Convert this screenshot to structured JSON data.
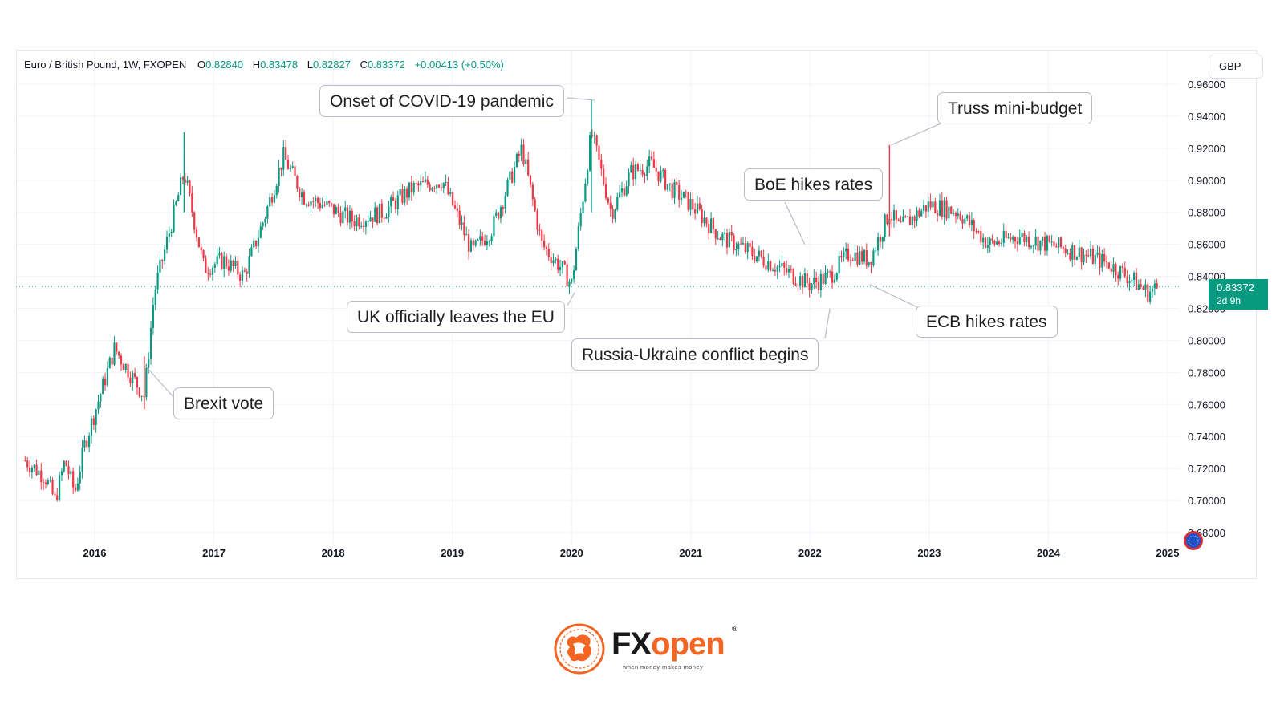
{
  "legend": {
    "symbol": "Euro / British Pound, 1W, FXOPEN",
    "o_label": "O",
    "o_value": "0.82840",
    "h_label": "H",
    "h_value": "0.83478",
    "l_label": "L",
    "l_value": "0.82827",
    "c_label": "C",
    "c_value": "0.83372",
    "change": "+0.00413 (+0.50%)"
  },
  "currency": "GBP",
  "price_tag": {
    "value": "0.83372",
    "countdown": "2d 9h"
  },
  "colors": {
    "up": "#089981",
    "down": "#f23645",
    "grid": "#f0f3fa",
    "axis_text": "#131722"
  },
  "chart_data": {
    "type": "candlestick",
    "title": "Euro / British Pound, 1W, FXOPEN",
    "xlabel": "",
    "ylabel": "",
    "ylim": [
      0.665,
      0.965
    ],
    "x_ticks": [
      "2016",
      "2017",
      "2018",
      "2019",
      "2020",
      "2021",
      "2022",
      "2023",
      "2024",
      "2025"
    ],
    "y_ticks": [
      "0.96000",
      "0.94000",
      "0.92000",
      "0.90000",
      "0.88000",
      "0.86000",
      "0.84000",
      "0.82000",
      "0.80000",
      "0.78000",
      "0.76000",
      "0.74000",
      "0.72000",
      "0.70000",
      "0.68000"
    ],
    "y_tick_values": [
      0.96,
      0.94,
      0.92,
      0.9,
      0.88,
      0.86,
      0.84,
      0.82,
      0.8,
      0.78,
      0.76,
      0.74,
      0.72,
      0.7,
      0.68
    ],
    "current_price": 0.83372,
    "grid": true,
    "series": [
      {
        "approx_close_path": [
          [
            "2015-06",
            0.725
          ],
          [
            "2015-08",
            0.715
          ],
          [
            "2015-09",
            0.7
          ],
          [
            "2015-10",
            0.725
          ],
          [
            "2015-11",
            0.705
          ],
          [
            "2015-12",
            0.735
          ],
          [
            "2016-02",
            0.775
          ],
          [
            "2016-03",
            0.795
          ],
          [
            "2016-04",
            0.785
          ],
          [
            "2016-06",
            0.765
          ],
          [
            "2016-07",
            0.83
          ],
          [
            "2016-08",
            0.855
          ],
          [
            "2016-10",
            0.905
          ],
          [
            "2016-12",
            0.845
          ],
          [
            "2017-02",
            0.85
          ],
          [
            "2017-04",
            0.84
          ],
          [
            "2017-06",
            0.875
          ],
          [
            "2017-08",
            0.915
          ],
          [
            "2017-10",
            0.89
          ],
          [
            "2017-12",
            0.885
          ],
          [
            "2018-03",
            0.875
          ],
          [
            "2018-06",
            0.88
          ],
          [
            "2018-09",
            0.895
          ],
          [
            "2018-12",
            0.9
          ],
          [
            "2019-03",
            0.855
          ],
          [
            "2019-05",
            0.87
          ],
          [
            "2019-08",
            0.92
          ],
          [
            "2019-10",
            0.86
          ],
          [
            "2019-12",
            0.845
          ],
          [
            "2020-01",
            0.835
          ],
          [
            "2020-03",
            0.93
          ],
          [
            "2020-05",
            0.88
          ],
          [
            "2020-07",
            0.905
          ],
          [
            "2020-09",
            0.91
          ],
          [
            "2020-11",
            0.895
          ],
          [
            "2021-01",
            0.885
          ],
          [
            "2021-04",
            0.865
          ],
          [
            "2021-07",
            0.855
          ],
          [
            "2021-10",
            0.845
          ],
          [
            "2022-01",
            0.835
          ],
          [
            "2022-03",
            0.84
          ],
          [
            "2022-05",
            0.855
          ],
          [
            "2022-07",
            0.85
          ],
          [
            "2022-09",
            0.88
          ],
          [
            "2022-10",
            0.87
          ],
          [
            "2023-01",
            0.885
          ],
          [
            "2023-04",
            0.88
          ],
          [
            "2023-07",
            0.86
          ],
          [
            "2023-10",
            0.865
          ],
          [
            "2024-01",
            0.86
          ],
          [
            "2024-04",
            0.855
          ],
          [
            "2024-07",
            0.848
          ],
          [
            "2024-09",
            0.84
          ],
          [
            "2024-11",
            0.83
          ],
          [
            "2024-12",
            0.833
          ]
        ]
      }
    ],
    "annotations": [
      {
        "label": "Brexit vote",
        "date": "2016-06",
        "price": 0.785
      },
      {
        "label": "Onset of COVID-19 pandemic",
        "date": "2020-03",
        "price": 0.95
      },
      {
        "label": "UK officially leaves the EU",
        "date": "2020-01",
        "price": 0.83
      },
      {
        "label": "Truss mini-budget",
        "date": "2022-09",
        "price": 0.922
      },
      {
        "label": "BoE hikes rates",
        "date": "2021-12",
        "price": 0.86
      },
      {
        "label": "Russia-Ukraine conflict begins",
        "date": "2022-03",
        "price": 0.82
      },
      {
        "label": "ECB hikes rates",
        "date": "2022-07",
        "price": 0.835
      }
    ]
  },
  "logo": {
    "brand_fx": "FX",
    "brand_open": "open",
    "reg": "®",
    "tagline": "when money makes money"
  }
}
